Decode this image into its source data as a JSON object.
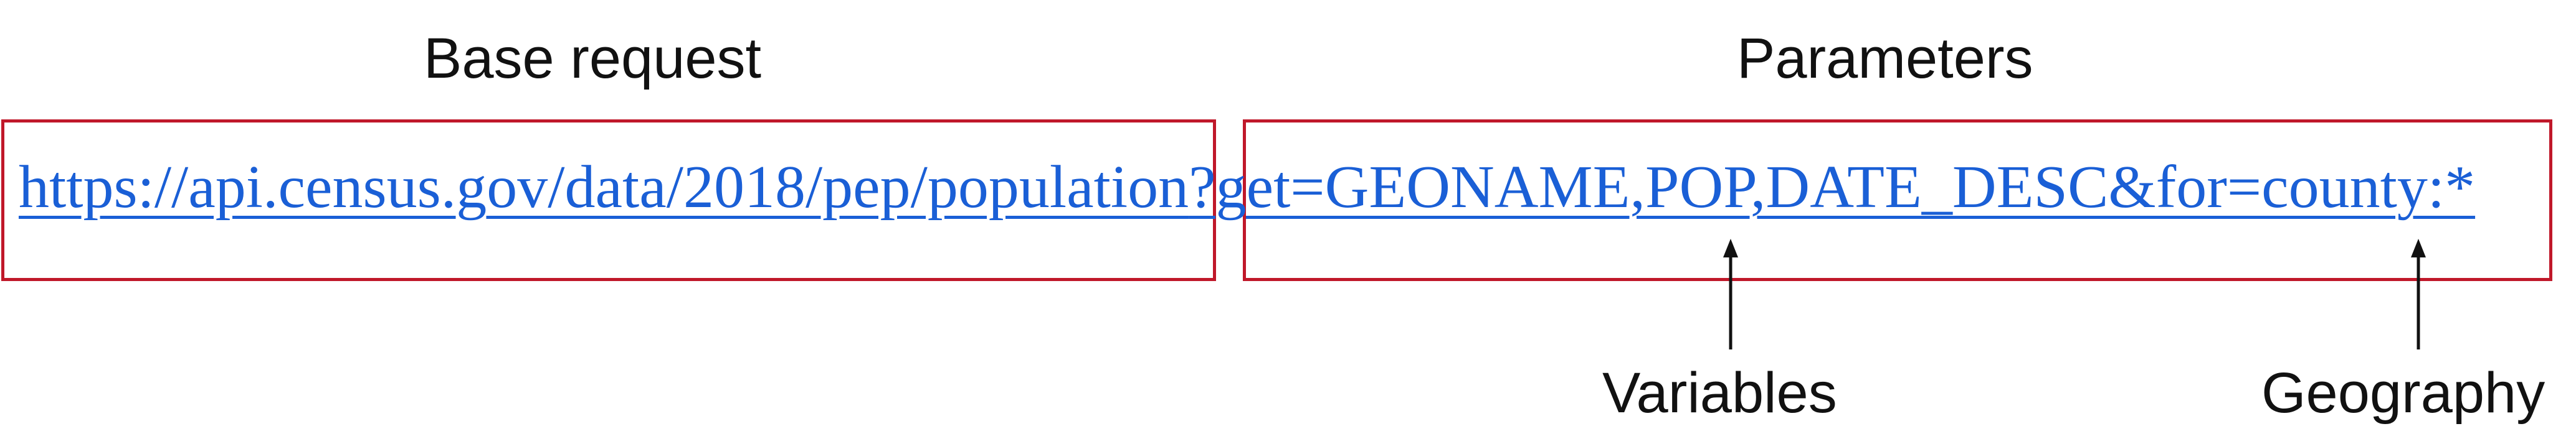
{
  "headings": {
    "base": "Base request",
    "params": "Parameters"
  },
  "url": {
    "base": "https://api.census.gov/data/2018/pep/population",
    "params": "?get=GEONAME,POP,DATE_DESC&for=county:*"
  },
  "annotations": {
    "variables": "Variables",
    "geography": "Geography"
  },
  "colors": {
    "box_border": "#c0182a",
    "link": "#1a5fd6",
    "text": "#111111"
  }
}
